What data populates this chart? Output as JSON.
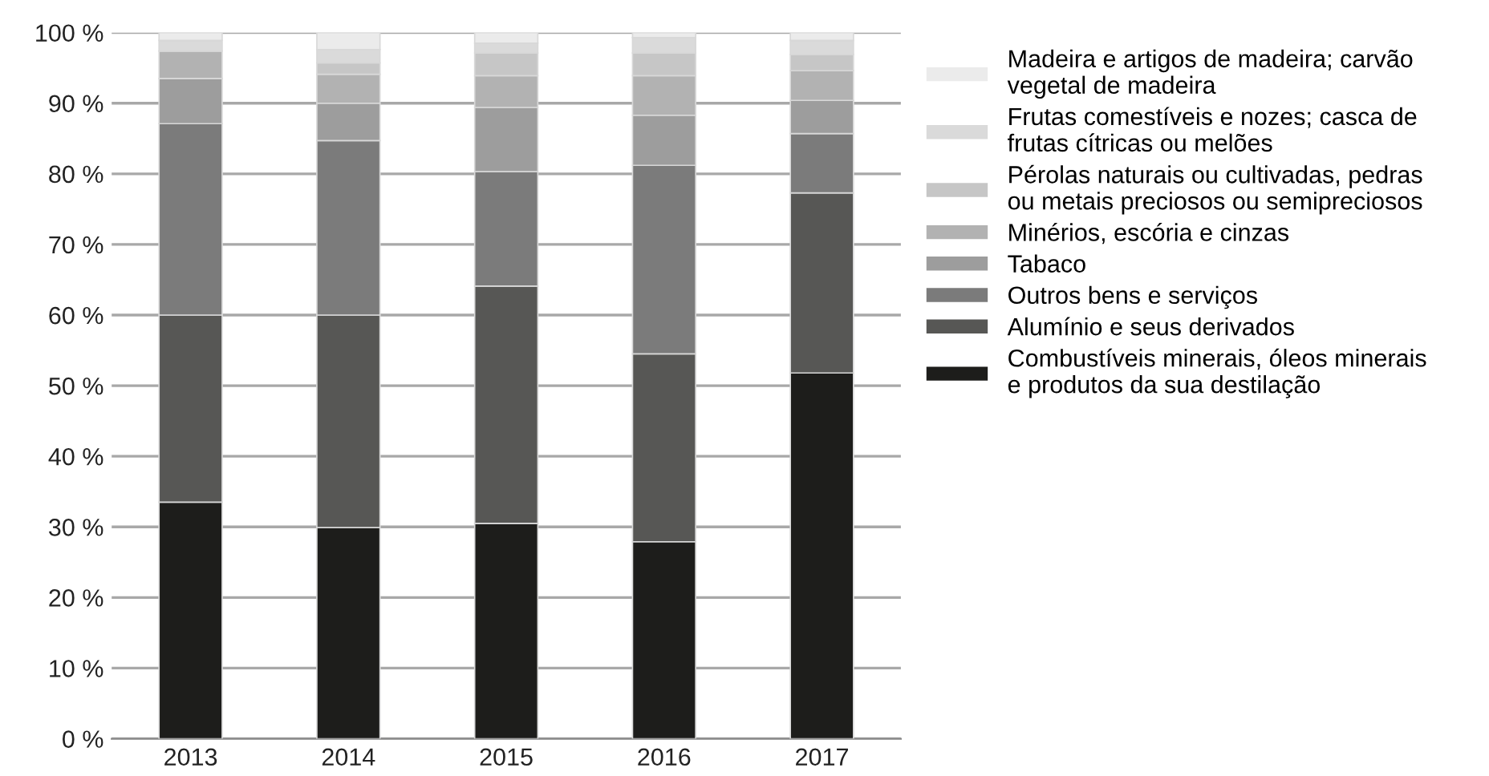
{
  "chart_data": {
    "type": "bar",
    "stacked": true,
    "categories": [
      "2013",
      "2014",
      "2015",
      "2016",
      "2017"
    ],
    "series": [
      {
        "name": "Combustíveis minerais, óleos minerais\ne produtos da sua destilação",
        "color": "#1d1d1b",
        "values": [
          33.5,
          29.9,
          30.5,
          27.9,
          51.8
        ]
      },
      {
        "name": "Alumínio e seus derivados",
        "color": "#575755",
        "values": [
          26.5,
          30.1,
          33.6,
          26.6,
          25.5
        ]
      },
      {
        "name": "Outros bens e serviços",
        "color": "#7b7b7b",
        "values": [
          27.1,
          24.7,
          16.2,
          26.7,
          8.4
        ]
      },
      {
        "name": "Tabaco",
        "color": "#9d9d9d",
        "values": [
          6.4,
          5.3,
          9.1,
          7.1,
          4.7
        ]
      },
      {
        "name": "Minérios, escória e cinzas",
        "color": "#b2b2b2",
        "values": [
          3.9,
          4.1,
          4.5,
          5.6,
          4.2
        ]
      },
      {
        "name": "Pérolas naturais ou cultivadas, pedras\nou metais preciosos ou semipreciosos",
        "color": "#c6c6c6",
        "values": [
          0,
          1.6,
          3.2,
          3.2,
          2.3
        ]
      },
      {
        "name": "Frutas comestíveis e nozes; casca de\nfrutas cítricas ou melões",
        "color": "#dadada",
        "values": [
          1.5,
          1.9,
          1.4,
          2.2,
          2.0
        ]
      },
      {
        "name": "Madeira e artigos de madeira; carvão\nvegetal de madeira",
        "color": "#ebebeb",
        "values": [
          1.1,
          2.4,
          1.5,
          0.7,
          1.1
        ]
      }
    ],
    "ylim": [
      0,
      100
    ],
    "yticks": [
      {
        "value": 0,
        "label": "0 %"
      },
      {
        "value": 10,
        "label": "10 %"
      },
      {
        "value": 20,
        "label": "20 %"
      },
      {
        "value": 30,
        "label": "30 %"
      },
      {
        "value": 40,
        "label": "40 %"
      },
      {
        "value": 50,
        "label": "50 %"
      },
      {
        "value": 60,
        "label": "60 %"
      },
      {
        "value": 70,
        "label": "70 %"
      },
      {
        "value": 80,
        "label": "80 %"
      },
      {
        "value": 90,
        "label": "90 %"
      },
      {
        "value": 100,
        "label": "100 %"
      }
    ],
    "grid": "y",
    "legend": "right"
  }
}
